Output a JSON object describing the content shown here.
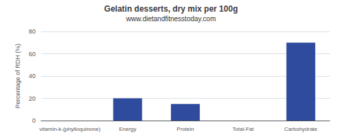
{
  "chart_data": {
    "type": "bar",
    "title": "Gelatin desserts, dry mix per 100g",
    "subtitle": "www.dietandfitnesstoday.com",
    "categories": [
      "vitamin-k-(phylloquinone)",
      "Energy",
      "Protein",
      "Total-Fat",
      "Carbohydrate"
    ],
    "values": [
      0,
      20,
      15,
      0,
      70
    ],
    "color": "#2e4b9e",
    "ylabel": "Percentage of RDH (%)",
    "ylim": [
      0,
      80
    ],
    "yticks": [
      0,
      20,
      40,
      60,
      80
    ],
    "grid": true
  }
}
